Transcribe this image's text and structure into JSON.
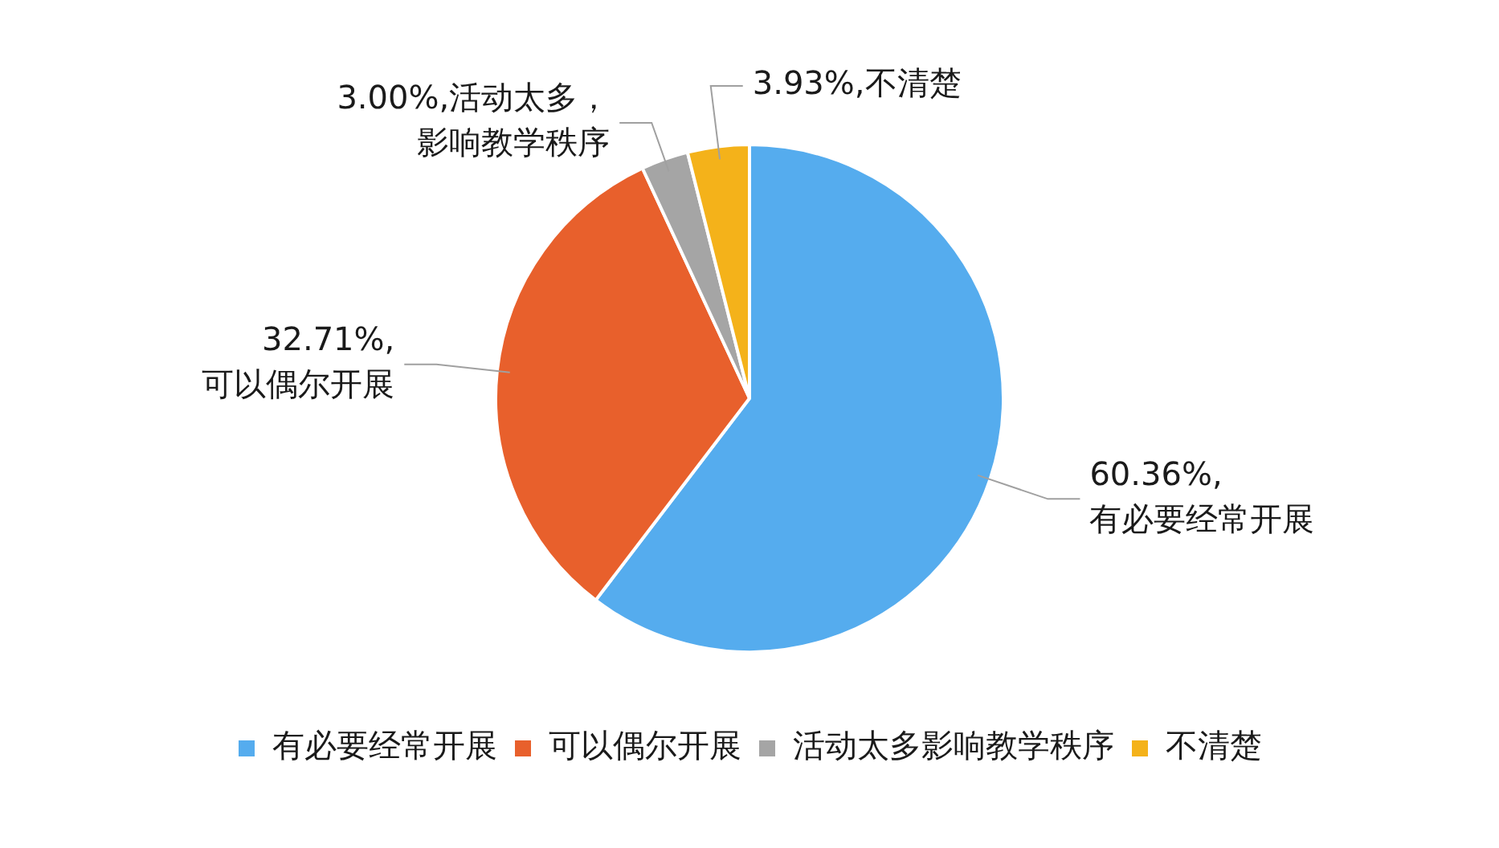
{
  "chart_data": {
    "type": "pie",
    "categories": [
      "有必要经常开展",
      "可以偶尔开展",
      "活动太多影响教学秩序",
      "不清楚"
    ],
    "values": [
      60.36,
      32.71,
      3.0,
      3.93
    ],
    "colors": [
      "#55acee",
      "#e8602c",
      "#a5a5a5",
      "#f4b21a"
    ],
    "value_labels": [
      "60.36%,有必要经常开展",
      "32.71%,可以偶尔开展",
      "3.00%,活动太多，影响教学秩序",
      "3.93%,不清楚"
    ],
    "legend": "bottom"
  }
}
